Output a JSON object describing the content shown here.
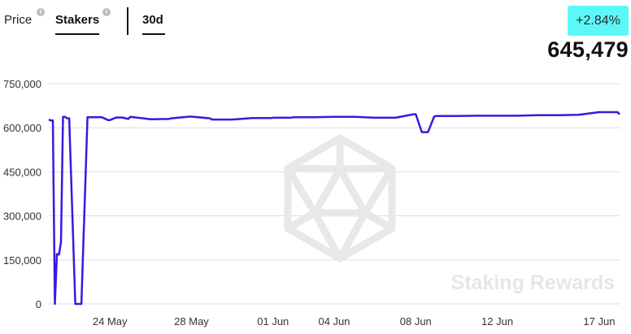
{
  "tabs": {
    "price_label": "Price",
    "stakers_label": "Stakers",
    "period_label": "30d",
    "info_glyph": "i"
  },
  "summary": {
    "change": "+2.84%",
    "current": "645,479"
  },
  "watermark": {
    "text": "Staking Rewards",
    "logo": "icosahedron-logo-icon"
  },
  "colors": {
    "line": "#3b18e0",
    "badge": "#5cf7f7",
    "grid": "#dddddd"
  },
  "chart_data": {
    "type": "line",
    "title": "",
    "xlabel": "",
    "ylabel": "",
    "ylim": [
      0,
      750000
    ],
    "yticks": [
      0,
      150000,
      300000,
      450000,
      600000,
      750000
    ],
    "ytick_labels": [
      "0",
      "150,000",
      "300,000",
      "450,000",
      "600,000",
      "750,000"
    ],
    "xlim": [
      "2024-05-21",
      "2024-06-18"
    ],
    "xticks": [
      "2024-05-24",
      "2024-05-28",
      "2024-06-01",
      "2024-06-04",
      "2024-06-08",
      "2024-06-12",
      "2024-06-17"
    ],
    "xtick_labels": [
      "24 May",
      "28 May",
      "01 Jun",
      "04 Jun",
      "08 Jun",
      "12 Jun",
      "17 Jun"
    ],
    "grid": true,
    "series": [
      {
        "x": [
          "2024-05-21",
          "2024-05-21",
          "2024-05-21",
          "2024-05-21",
          "2024-05-21",
          "2024-05-21",
          "2024-05-21",
          "2024-05-21",
          "2024-05-21",
          "2024-05-21",
          "2024-05-22",
          "2024-05-22",
          "2024-05-22",
          "2024-05-22",
          "2024-05-23",
          "2024-05-23",
          "2024-05-23",
          "2024-05-23",
          "2024-05-24",
          "2024-05-24",
          "2024-05-24",
          "2024-05-24",
          "2024-05-25",
          "2024-05-26",
          "2024-05-26",
          "2024-05-27",
          "2024-05-27",
          "2024-05-28",
          "2024-05-28",
          "2024-05-29",
          "2024-05-30",
          "2024-05-31",
          "2024-05-31",
          "2024-06-01",
          "2024-06-01",
          "2024-06-02",
          "2024-06-03",
          "2024-06-04",
          "2024-06-05",
          "2024-06-06",
          "2024-06-07",
          "2024-06-07",
          "2024-06-08",
          "2024-06-08",
          "2024-06-08",
          "2024-06-08",
          "2024-06-09",
          "2024-06-10",
          "2024-06-11",
          "2024-06-12",
          "2024-06-13",
          "2024-06-14",
          "2024-06-15",
          "2024-06-16",
          "2024-06-17",
          "2024-06-17",
          "2024-06-18"
        ],
        "y": [
          628000,
          625000,
          625000,
          0,
          170000,
          168000,
          210000,
          637000,
          637000,
          632000,
          632000,
          0,
          0,
          636000,
          636000,
          636000,
          636000,
          626000,
          626000,
          635000,
          635000,
          630000,
          637000,
          629000,
          630000,
          632000,
          638000,
          638000,
          632000,
          628000,
          628000,
          633000,
          633000,
          634000,
          634000,
          636000,
          636000,
          637000,
          637000,
          634000,
          634000,
          646000,
          646000,
          585000,
          585000,
          638000,
          640000,
          640000,
          641000,
          641000,
          641000,
          643000,
          643000,
          644000,
          653000,
          653000,
          645479
        ]
      }
    ]
  }
}
